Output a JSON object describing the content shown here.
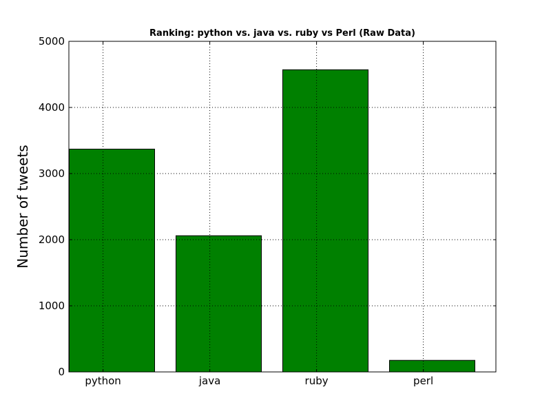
{
  "chart_data": {
    "type": "bar",
    "title": "Ranking: python vs. java vs. ruby vs Perl (Raw Data)",
    "xlabel": "",
    "ylabel": "Number of tweets",
    "categories": [
      "python",
      "java",
      "ruby",
      "perl"
    ],
    "values": [
      3370,
      2060,
      4570,
      175
    ],
    "ylim": [
      0,
      5000
    ],
    "yticks": [
      "0",
      "1000",
      "2000",
      "3000",
      "4000",
      "5000"
    ],
    "grid": true,
    "legend": "none",
    "colors": {
      "bar": "#008000",
      "bar_edge": "#000000",
      "grid": "#000000",
      "axes": "#000000"
    }
  }
}
